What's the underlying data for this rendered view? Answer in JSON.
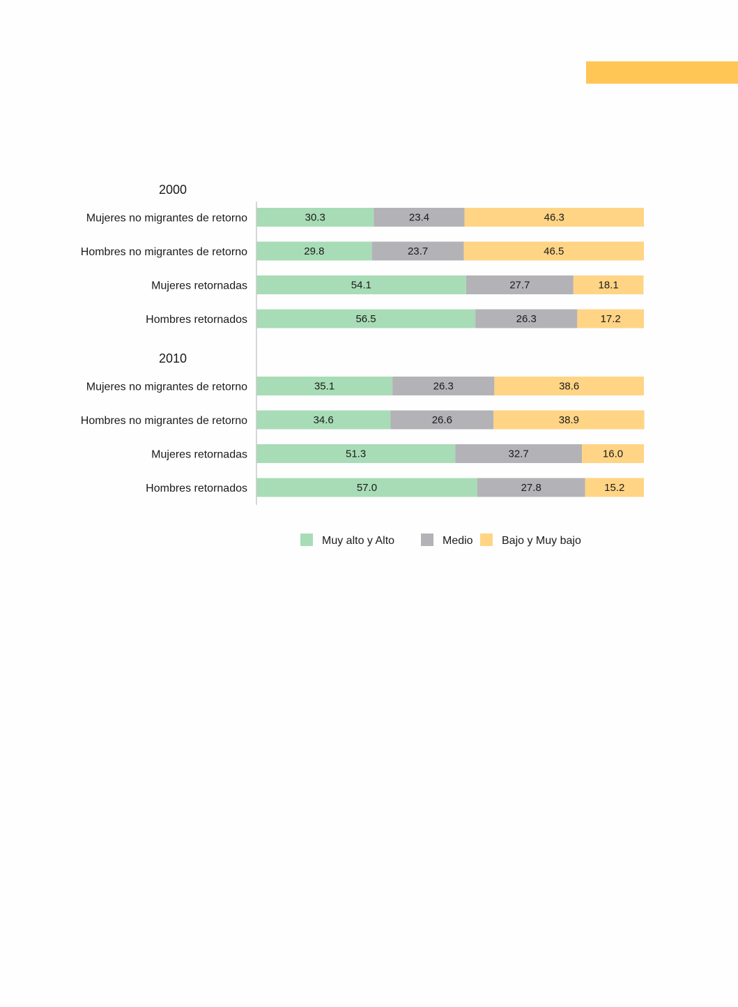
{
  "page": {
    "accent_color": "#ffc656"
  },
  "chart_data": {
    "type": "bar",
    "orientation": "horizontal",
    "stacked": true,
    "xlim": [
      0,
      100
    ],
    "colors": {
      "alto": "#a8dcb6",
      "medio": "#b3b2b6",
      "bajo": "#ffd485"
    },
    "axis_color": "#c8c8c8",
    "legend": [
      {
        "key": "alto",
        "label": "Muy alto y Alto"
      },
      {
        "key": "medio",
        "label": "Medio"
      },
      {
        "key": "bajo",
        "label": "Bajo y Muy bajo"
      }
    ],
    "groups": [
      {
        "label": "2000",
        "rows": [
          {
            "label": "Mujeres no migrantes de retorno",
            "alto": 30.3,
            "medio": 23.4,
            "bajo": 46.3
          },
          {
            "label": "Hombres no migrantes de retorno",
            "alto": 29.8,
            "medio": 23.7,
            "bajo": 46.5
          },
          {
            "label": "Mujeres retornadas",
            "alto": 54.1,
            "medio": 27.7,
            "bajo": 18.1
          },
          {
            "label": "Hombres retornados",
            "alto": 56.5,
            "medio": 26.3,
            "bajo": 17.2
          }
        ]
      },
      {
        "label": "2010",
        "rows": [
          {
            "label": "Mujeres no migrantes de retorno",
            "alto": 35.1,
            "medio": 26.3,
            "bajo": 38.6
          },
          {
            "label": "Hombres no migrantes de retorno",
            "alto": 34.6,
            "medio": 26.6,
            "bajo": 38.9
          },
          {
            "label": "Mujeres retornadas",
            "alto": 51.3,
            "medio": 32.7,
            "bajo": 16.0
          },
          {
            "label": "Hombres retornados",
            "alto": 57.0,
            "medio": 27.8,
            "bajo": 15.2
          }
        ]
      }
    ]
  }
}
